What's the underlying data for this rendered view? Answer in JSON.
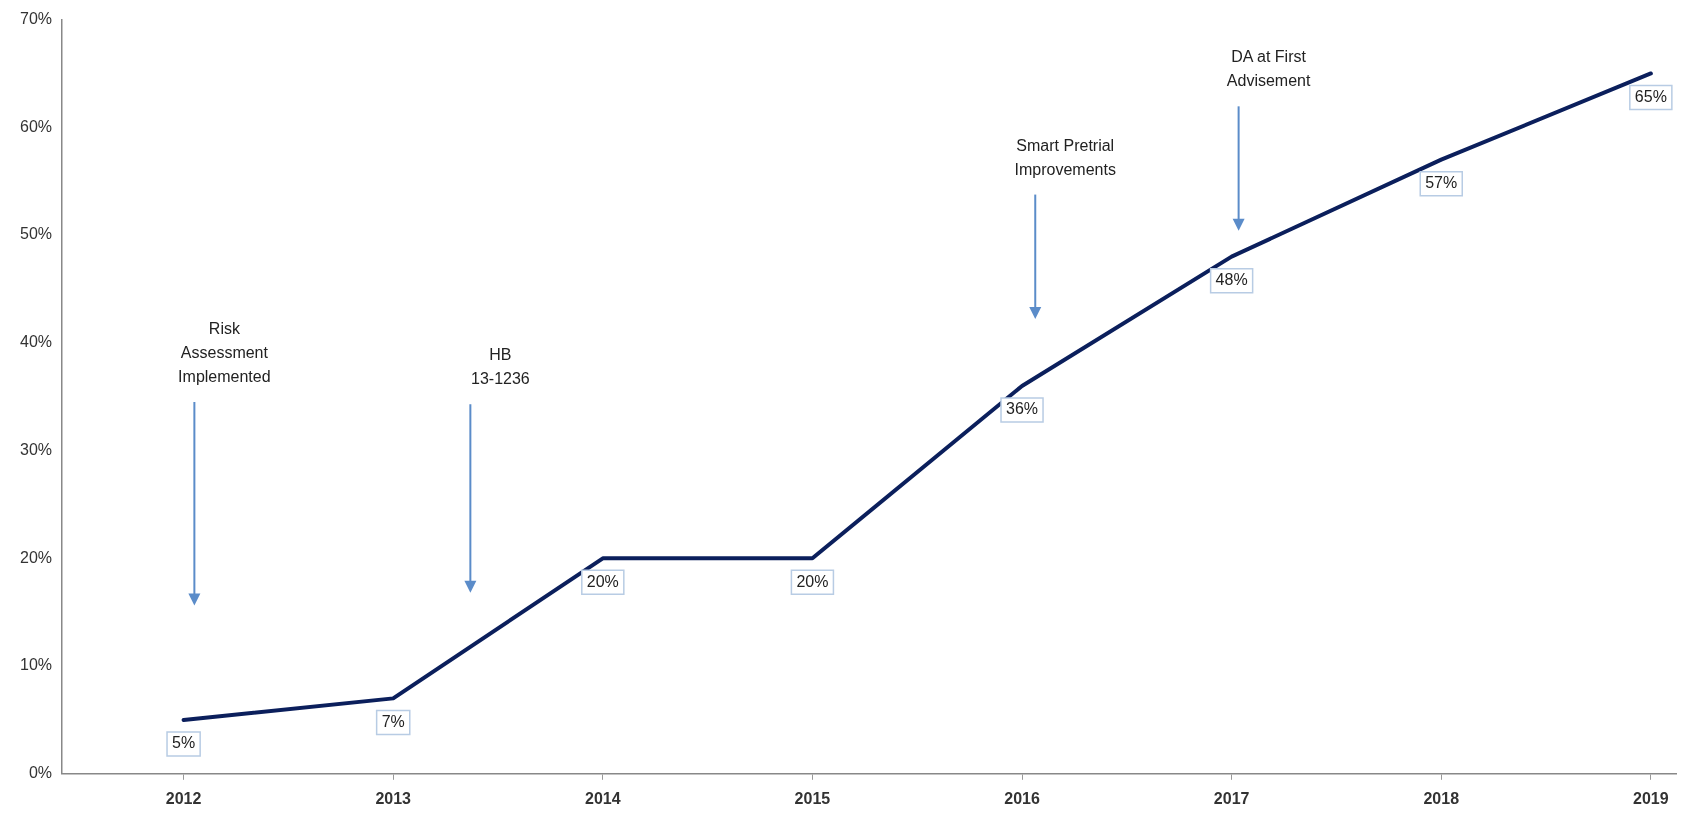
{
  "chart_data": {
    "type": "line",
    "x": [
      2012,
      2013,
      2014,
      2015,
      2016,
      2017,
      2018,
      2019
    ],
    "series": [
      {
        "color": "#0b1f5c",
        "values": [
          5,
          7,
          20,
          20,
          36,
          48,
          57,
          65
        ],
        "value_labels": [
          "5%",
          "7%",
          "20%",
          "20%",
          "36%",
          "48%",
          "57%",
          "65%"
        ]
      }
    ],
    "xlim": [
      2011.42,
      2019.12
    ],
    "xticks": [
      2012,
      2013,
      2014,
      2015,
      2016,
      2017,
      2018,
      2019
    ],
    "ylim": [
      0,
      70
    ],
    "yticks": [
      {
        "value": 0,
        "label": "0%"
      },
      {
        "value": 10,
        "label": "10%"
      },
      {
        "value": 20,
        "label": "20%"
      },
      {
        "value": 30,
        "label": "30%"
      },
      {
        "value": 40,
        "label": "40%"
      },
      {
        "value": 50,
        "label": "50%"
      },
      {
        "value": 60,
        "label": "60%"
      },
      {
        "value": 70,
        "label": "70%"
      }
    ],
    "annotations": [
      "Risk\nAssessment\nImplemented",
      "HB\n13-1236",
      "Smart Pretrial\nImprovements",
      "DA at First\nAdvisement"
    ],
    "grid": false,
    "legend": false,
    "marker": "none",
    "line_style": "solid"
  }
}
